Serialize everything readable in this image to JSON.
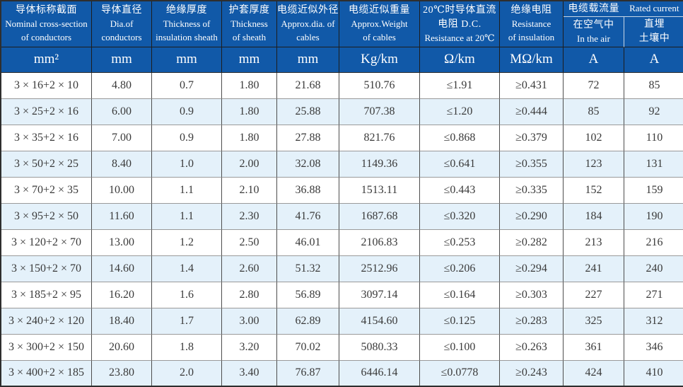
{
  "colors": {
    "header_bg": "#1159a8",
    "header_text": "#ffffff",
    "row_bg": "#ffffff",
    "row_alt_bg": "#e4f1fa",
    "data_text": "#3a3a3a"
  },
  "table": {
    "header": {
      "columns": [
        {
          "lines": [
            "导体标称截面",
            "Nominal cross-section",
            "of conductors"
          ],
          "unit": "mm²"
        },
        {
          "lines": [
            "导体直径",
            "Dia.of",
            "conductors"
          ],
          "unit": "mm"
        },
        {
          "lines": [
            "绝缘厚度",
            "Thickness of",
            "insulation sheath"
          ],
          "unit": "mm"
        },
        {
          "lines": [
            "护套厚度",
            "Thickness",
            "of sheath"
          ],
          "unit": "mm"
        },
        {
          "lines": [
            "电缆近似外径",
            "Approx.dia. of",
            "cables"
          ],
          "unit": "mm"
        },
        {
          "lines": [
            "电缆近似重量",
            "Approx.Weight",
            "of cables"
          ],
          "unit": "Kg/km"
        },
        {
          "lines": [
            "20℃时导体直流",
            "电阻 D.C.",
            "Resistance at 20℃"
          ],
          "unit": "Ω/km"
        },
        {
          "lines": [
            "绝缘电阻",
            "Resistance",
            "of insulation"
          ],
          "unit": "MΩ/km"
        }
      ],
      "current_group": {
        "title_zh": "电缆载流量",
        "title_en": "Rated current",
        "sub": [
          {
            "lines": [
              "在空气中",
              "In the air"
            ],
            "unit": "A"
          },
          {
            "lines": [
              "直埋",
              "土壤中"
            ],
            "unit": "A"
          }
        ]
      }
    },
    "rows": [
      [
        "3 × 16+2 × 10",
        "4.80",
        "0.7",
        "1.80",
        "21.68",
        "510.76",
        "≤1.91",
        "≥0.431",
        "72",
        "85"
      ],
      [
        "3 × 25+2 × 16",
        "6.00",
        "0.9",
        "1.80",
        "25.88",
        "707.38",
        "≤1.20",
        "≥0.444",
        "85",
        "92"
      ],
      [
        "3 × 35+2 × 16",
        "7.00",
        "0.9",
        "1.80",
        "27.88",
        "821.76",
        "≤0.868",
        "≥0.379",
        "102",
        "110"
      ],
      [
        "3 × 50+2 × 25",
        "8.40",
        "1.0",
        "2.00",
        "32.08",
        "1149.36",
        "≤0.641",
        "≥0.355",
        "123",
        "131"
      ],
      [
        "3 × 70+2 × 35",
        "10.00",
        "1.1",
        "2.10",
        "36.88",
        "1513.11",
        "≤0.443",
        "≥0.335",
        "152",
        "159"
      ],
      [
        "3 × 95+2 × 50",
        "11.60",
        "1.1",
        "2.30",
        "41.76",
        "1687.68",
        "≤0.320",
        "≥0.290",
        "184",
        "190"
      ],
      [
        "3 × 120+2 × 70",
        "13.00",
        "1.2",
        "2.50",
        "46.01",
        "2106.83",
        "≤0.253",
        "≥0.282",
        "213",
        "216"
      ],
      [
        "3 × 150+2 × 70",
        "14.60",
        "1.4",
        "2.60",
        "51.32",
        "2512.96",
        "≤0.206",
        "≥0.294",
        "241",
        "240"
      ],
      [
        "3 × 185+2 × 95",
        "16.20",
        "1.6",
        "2.80",
        "56.89",
        "3097.14",
        "≤0.164",
        "≥0.303",
        "227",
        "271"
      ],
      [
        "3 × 240+2 × 120",
        "18.40",
        "1.7",
        "3.00",
        "62.89",
        "4154.60",
        "≤0.125",
        "≥0.283",
        "325",
        "312"
      ],
      [
        "3 × 300+2 × 150",
        "20.60",
        "1.8",
        "3.20",
        "70.02",
        "5080.33",
        "≤0.100",
        "≥0.263",
        "361",
        "346"
      ],
      [
        "3 × 400+2 × 185",
        "23.80",
        "2.0",
        "3.40",
        "76.87",
        "6446.14",
        "≤0.0778",
        "≥0.243",
        "424",
        "410"
      ]
    ]
  }
}
